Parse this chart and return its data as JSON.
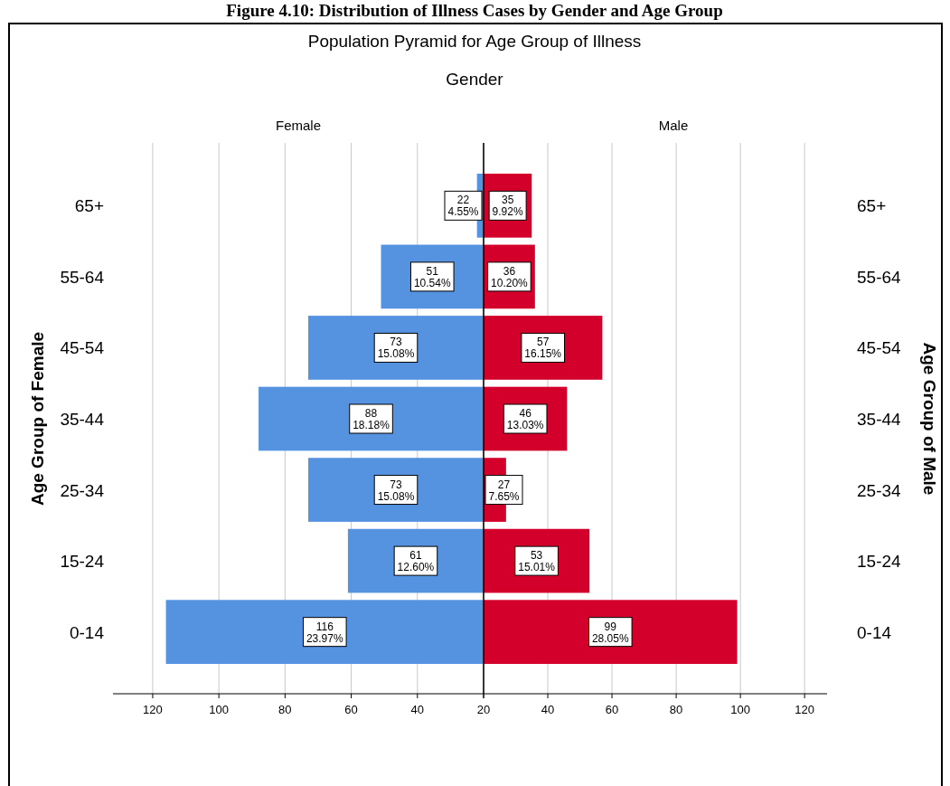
{
  "chart_data": [
    {
      "type": "bar",
      "orientation": "horizontal",
      "title": "Female",
      "ylabel": "Age Group of Female",
      "annotations": [
        "Figure 4.10: Distribution of Illness Cases by Gender and Age Group",
        "Population Pyramid for Age Group of Illness",
        "Gender"
      ],
      "categories": [
        "65+",
        "55-64",
        "45-54",
        "35-44",
        "25-34",
        "15-24",
        "0-14"
      ],
      "values": [
        22,
        51,
        73,
        88,
        73,
        61,
        116
      ],
      "color": "#5592e0",
      "value_labels": [
        "22\n4.55%",
        "51\n10.54%",
        "73\n15.08%",
        "88\n18.18%",
        "73\n15.08%",
        "61\n12.60%",
        "116\n23.97%"
      ],
      "xlim": [
        132,
        20
      ],
      "xticks": [
        120,
        100,
        80,
        60,
        40,
        20
      ],
      "grid": "x"
    },
    {
      "type": "bar",
      "orientation": "horizontal",
      "title": "Male",
      "ylabel": "Age Group of Male",
      "categories": [
        "65+",
        "55-64",
        "45-54",
        "35-44",
        "25-34",
        "15-24",
        "0-14"
      ],
      "values": [
        35,
        36,
        57,
        46,
        27,
        53,
        99
      ],
      "color": "#d4002c",
      "value_labels": [
        "35\n9.92%",
        "36\n10.20%",
        "57\n16.15%",
        "46\n13.03%",
        "27\n7.65%",
        "53\n15.01%",
        "99\n28.05%"
      ],
      "xlim": [
        20,
        127
      ],
      "xticks": [
        {
          "value": 20,
          "label": null
        },
        40,
        60,
        80,
        100,
        120
      ],
      "grid": "x"
    }
  ]
}
